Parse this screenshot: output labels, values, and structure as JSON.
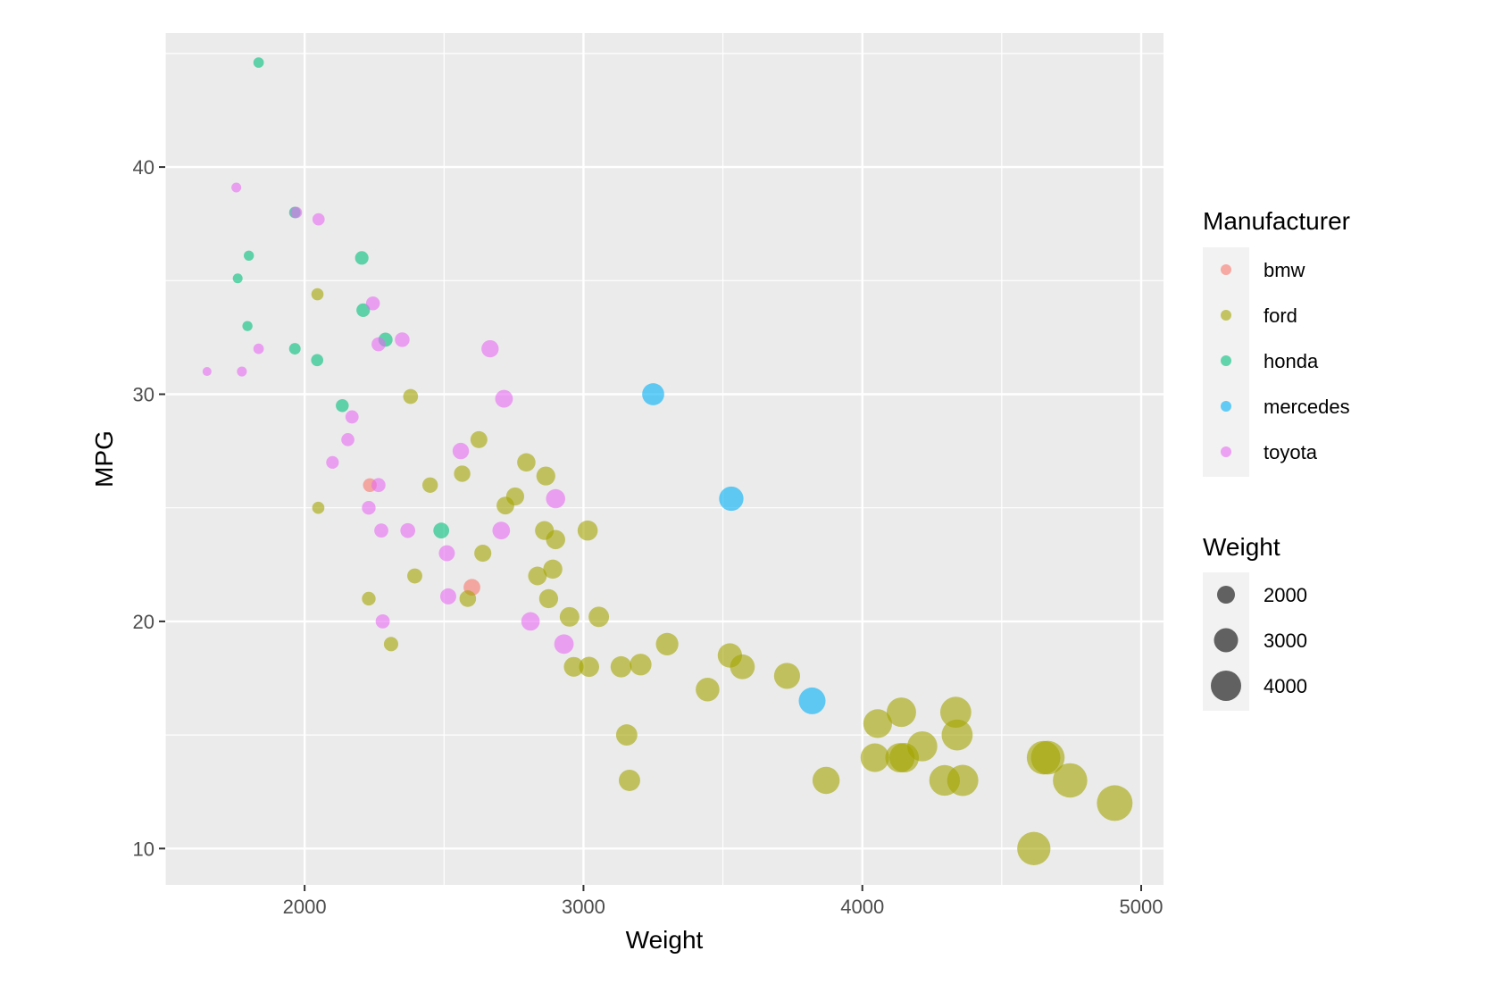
{
  "chart_data": {
    "type": "scatter",
    "xlabel": "Weight",
    "ylabel": "MPG",
    "xlim": [
      1500,
      5080
    ],
    "ylim": [
      8.4,
      45.9
    ],
    "x_ticks": [
      2000,
      3000,
      4000,
      5000
    ],
    "y_ticks": [
      10,
      20,
      30,
      40
    ],
    "grid": true,
    "legend_placement": "right",
    "point_opacity": 0.6,
    "color_legend": {
      "title": "Manufacturer",
      "entries": [
        {
          "label": "bmw",
          "color": "#F8766D"
        },
        {
          "label": "ford",
          "color": "#A3A500"
        },
        {
          "label": "honda",
          "color": "#00BF7D"
        },
        {
          "label": "mercedes",
          "color": "#00B0F6"
        },
        {
          "label": "toyota",
          "color": "#E76BF3"
        }
      ]
    },
    "size_legend": {
      "title": "Weight",
      "entries": [
        {
          "label": "2000",
          "value": 2000
        },
        {
          "label": "3000",
          "value": 3000
        },
        {
          "label": "4000",
          "value": 4000
        }
      ]
    },
    "series": [
      {
        "name": "bmw",
        "points": [
          [
            2234,
            26
          ],
          [
            2600,
            21.5
          ]
        ]
      },
      {
        "name": "ford",
        "points": [
          [
            2046,
            34.4
          ],
          [
            2049,
            25
          ],
          [
            2230,
            21
          ],
          [
            2310,
            19
          ],
          [
            2380,
            29.9
          ],
          [
            2395,
            22
          ],
          [
            2450,
            26
          ],
          [
            2565,
            26.5
          ],
          [
            2585,
            21
          ],
          [
            2625,
            28
          ],
          [
            2639,
            23
          ],
          [
            2720,
            25.1
          ],
          [
            2755,
            25.5
          ],
          [
            2795,
            27
          ],
          [
            2835,
            22
          ],
          [
            2860,
            24
          ],
          [
            2865,
            26.4
          ],
          [
            2875,
            21
          ],
          [
            2890,
            22.3
          ],
          [
            2900,
            23.6
          ],
          [
            2950,
            20.2
          ],
          [
            2965,
            18
          ],
          [
            3015,
            24
          ],
          [
            3020,
            18
          ],
          [
            3055,
            20.2
          ],
          [
            3135,
            18
          ],
          [
            3155,
            15
          ],
          [
            3165,
            13
          ],
          [
            3205,
            18.1
          ],
          [
            3300,
            19
          ],
          [
            3445,
            17
          ],
          [
            3525,
            18.5
          ],
          [
            3570,
            18
          ],
          [
            3730,
            17.6
          ],
          [
            3870,
            13
          ],
          [
            4045,
            14
          ],
          [
            4055,
            15.5
          ],
          [
            4135,
            14
          ],
          [
            4140,
            16
          ],
          [
            4150,
            14
          ],
          [
            4215,
            14.5
          ],
          [
            4295,
            13
          ],
          [
            4335,
            16
          ],
          [
            4340,
            15
          ],
          [
            4360,
            13
          ],
          [
            4615,
            10
          ],
          [
            4650,
            14
          ],
          [
            4665,
            14
          ],
          [
            4745,
            13
          ],
          [
            4905,
            12
          ]
        ]
      },
      {
        "name": "honda",
        "points": [
          [
            1835,
            44.6
          ],
          [
            1760,
            35.1
          ],
          [
            1800,
            36.1
          ],
          [
            1795,
            33
          ],
          [
            1965,
            38
          ],
          [
            1965,
            32
          ],
          [
            2045,
            31.5
          ],
          [
            2135,
            29.5
          ],
          [
            2205,
            36
          ],
          [
            2210,
            33.7
          ],
          [
            2290,
            32.4
          ],
          [
            2490,
            24
          ]
        ]
      },
      {
        "name": "mercedes",
        "points": [
          [
            3250,
            30
          ],
          [
            3530,
            25.4
          ],
          [
            3820,
            16.5
          ]
        ]
      },
      {
        "name": "toyota",
        "points": [
          [
            1650,
            31
          ],
          [
            1755,
            39.1
          ],
          [
            1775,
            31
          ],
          [
            1835,
            32
          ],
          [
            1970,
            38
          ],
          [
            2050,
            37.7
          ],
          [
            2100,
            27
          ],
          [
            2155,
            28
          ],
          [
            2170,
            29
          ],
          [
            2230,
            25
          ],
          [
            2245,
            34
          ],
          [
            2265,
            32.2
          ],
          [
            2265,
            26
          ],
          [
            2275,
            24
          ],
          [
            2280,
            20
          ],
          [
            2350,
            32.4
          ],
          [
            2370,
            24
          ],
          [
            2510,
            23
          ],
          [
            2515,
            21.1
          ],
          [
            2560,
            27.5
          ],
          [
            2665,
            32
          ],
          [
            2705,
            24
          ],
          [
            2715,
            29.8
          ],
          [
            2810,
            20
          ],
          [
            2900,
            25.4
          ],
          [
            2930,
            19
          ]
        ]
      }
    ]
  }
}
